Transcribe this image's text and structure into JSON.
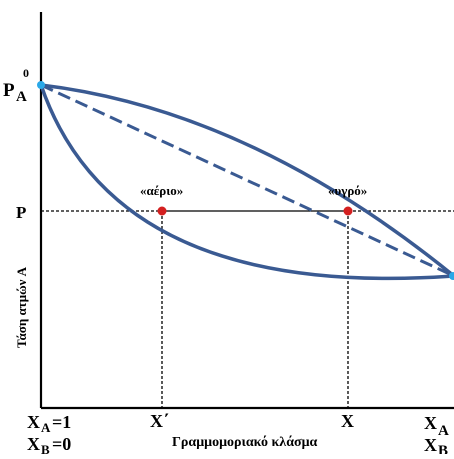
{
  "labels": {
    "pa0_main": "P",
    "pa0_sub": "A",
    "pa0_sup": "0",
    "p": "P",
    "y_axis": "Τάση ατμών A",
    "x_axis": "Γραμμομοριακό κλάσμα",
    "gas": "«αέριο»",
    "liquid": "«υγρό»",
    "xa_left_main": "X",
    "xa_left_sub": "A",
    "xa_left_val": "=1",
    "xb_left_main": "X",
    "xb_left_sub": "B",
    "xb_left_val": "=0",
    "x_prime": "X΄",
    "x_mark": "X",
    "xa_right_main": "X",
    "xa_right_sub": "A",
    "xb_right_main": "X",
    "xb_right_sub": "B"
  },
  "colors": {
    "curve": "#3a5a92",
    "endpoint": "#2aa8e8",
    "point": "#d42020",
    "axis": "#000000"
  }
}
